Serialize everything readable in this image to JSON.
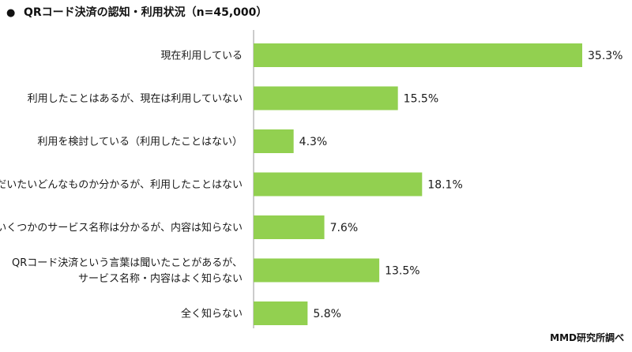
{
  "chart_data": {
    "type": "bar",
    "orientation": "horizontal",
    "title": "QRコード決済の認知・利用状況（n=45,000）",
    "title_bullet": "●",
    "categories": [
      [
        "現在利用している"
      ],
      [
        "利用したことはあるが、現在は利用していない"
      ],
      [
        "利用を検討している（利用したことはない）"
      ],
      [
        "だいたいどんなものか分かるが、利用したことはない"
      ],
      [
        "いくつかのサービス名称は分かるが、内容は知らない"
      ],
      [
        "QRコード決済という言葉は聞いたことがあるが、",
        "サービス名称・内容はよく知らない"
      ],
      [
        "全く知らない"
      ]
    ],
    "values": [
      35.3,
      15.5,
      4.3,
      18.1,
      7.6,
      13.5,
      5.8
    ],
    "value_labels": [
      "35.3%",
      "15.5%",
      "4.3%",
      "18.1%",
      "7.6%",
      "13.5%",
      "5.8%"
    ],
    "unit": "%",
    "xlim": [
      0,
      35.3
    ],
    "grid": false,
    "legend": "none",
    "bar_color": "#92d050",
    "source": "MMD研究所調べ"
  }
}
